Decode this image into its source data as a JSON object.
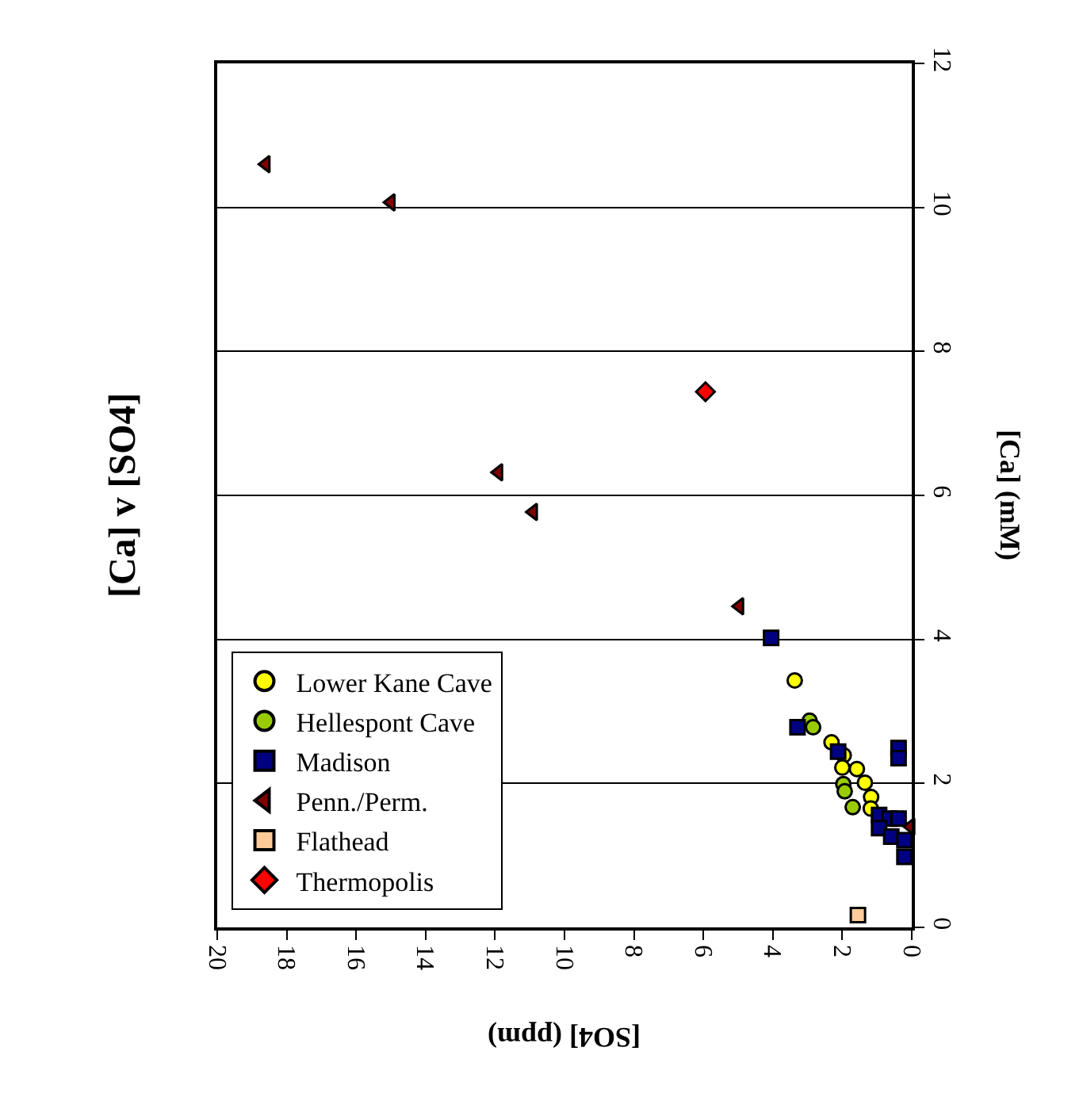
{
  "chart_data": {
    "type": "scatter",
    "title": "[Ca] v [SO4]",
    "xlabel": "[SO4] (ppm)",
    "ylabel": "[Ca] (mM)",
    "xlim": [
      20,
      0
    ],
    "xticks": [
      20,
      18,
      16,
      14,
      12,
      10,
      8,
      6,
      4,
      2,
      0
    ],
    "ylim": [
      0,
      12
    ],
    "yticks": [
      0,
      2,
      4,
      6,
      8,
      10,
      12
    ],
    "grid": "y",
    "legend": "bottom left",
    "series": [
      {
        "name": "Lower Kane Cave",
        "color": "#ffff00",
        "marker": "circle",
        "x": [
          3.37,
          2.31,
          1.96,
          2.0,
          1.58,
          1.35,
          1.17,
          1.18
        ],
        "values": [
          3.43,
          2.57,
          2.39,
          2.22,
          2.2,
          2.01,
          1.81,
          1.65
        ]
      },
      {
        "name": "Hellespont Cave",
        "color": "#99cc00",
        "marker": "circle",
        "x": [
          2.94,
          2.84,
          1.97,
          1.93,
          1.7
        ],
        "values": [
          2.87,
          2.78,
          1.99,
          1.89,
          1.67
        ]
      },
      {
        "name": "Madison",
        "color": "#000080",
        "marker": "square",
        "x": [
          4.05,
          3.29,
          2.12,
          0.38,
          0.38,
          0.94,
          0.64,
          0.38,
          0.94,
          0.59,
          0.21,
          0.21
        ],
        "values": [
          4.02,
          2.78,
          2.44,
          2.49,
          2.35,
          1.56,
          1.51,
          1.51,
          1.38,
          1.26,
          1.21,
          0.98
        ]
      },
      {
        "name": "Penn./Perm.",
        "color": "#800000",
        "marker": "triangle",
        "x": [
          18.6,
          15.0,
          11.9,
          10.9,
          4.96,
          0.03
        ],
        "values": [
          10.6,
          10.07,
          6.32,
          5.77,
          4.46,
          1.4
        ]
      },
      {
        "name": "Flathead",
        "color": "#ffcc99",
        "marker": "square",
        "x": [
          1.55
        ],
        "values": [
          0.17
        ]
      },
      {
        "name": "Thermopolis",
        "color": "#ff0000",
        "marker": "diamond",
        "x": [
          5.94
        ],
        "values": [
          7.44
        ]
      }
    ]
  }
}
